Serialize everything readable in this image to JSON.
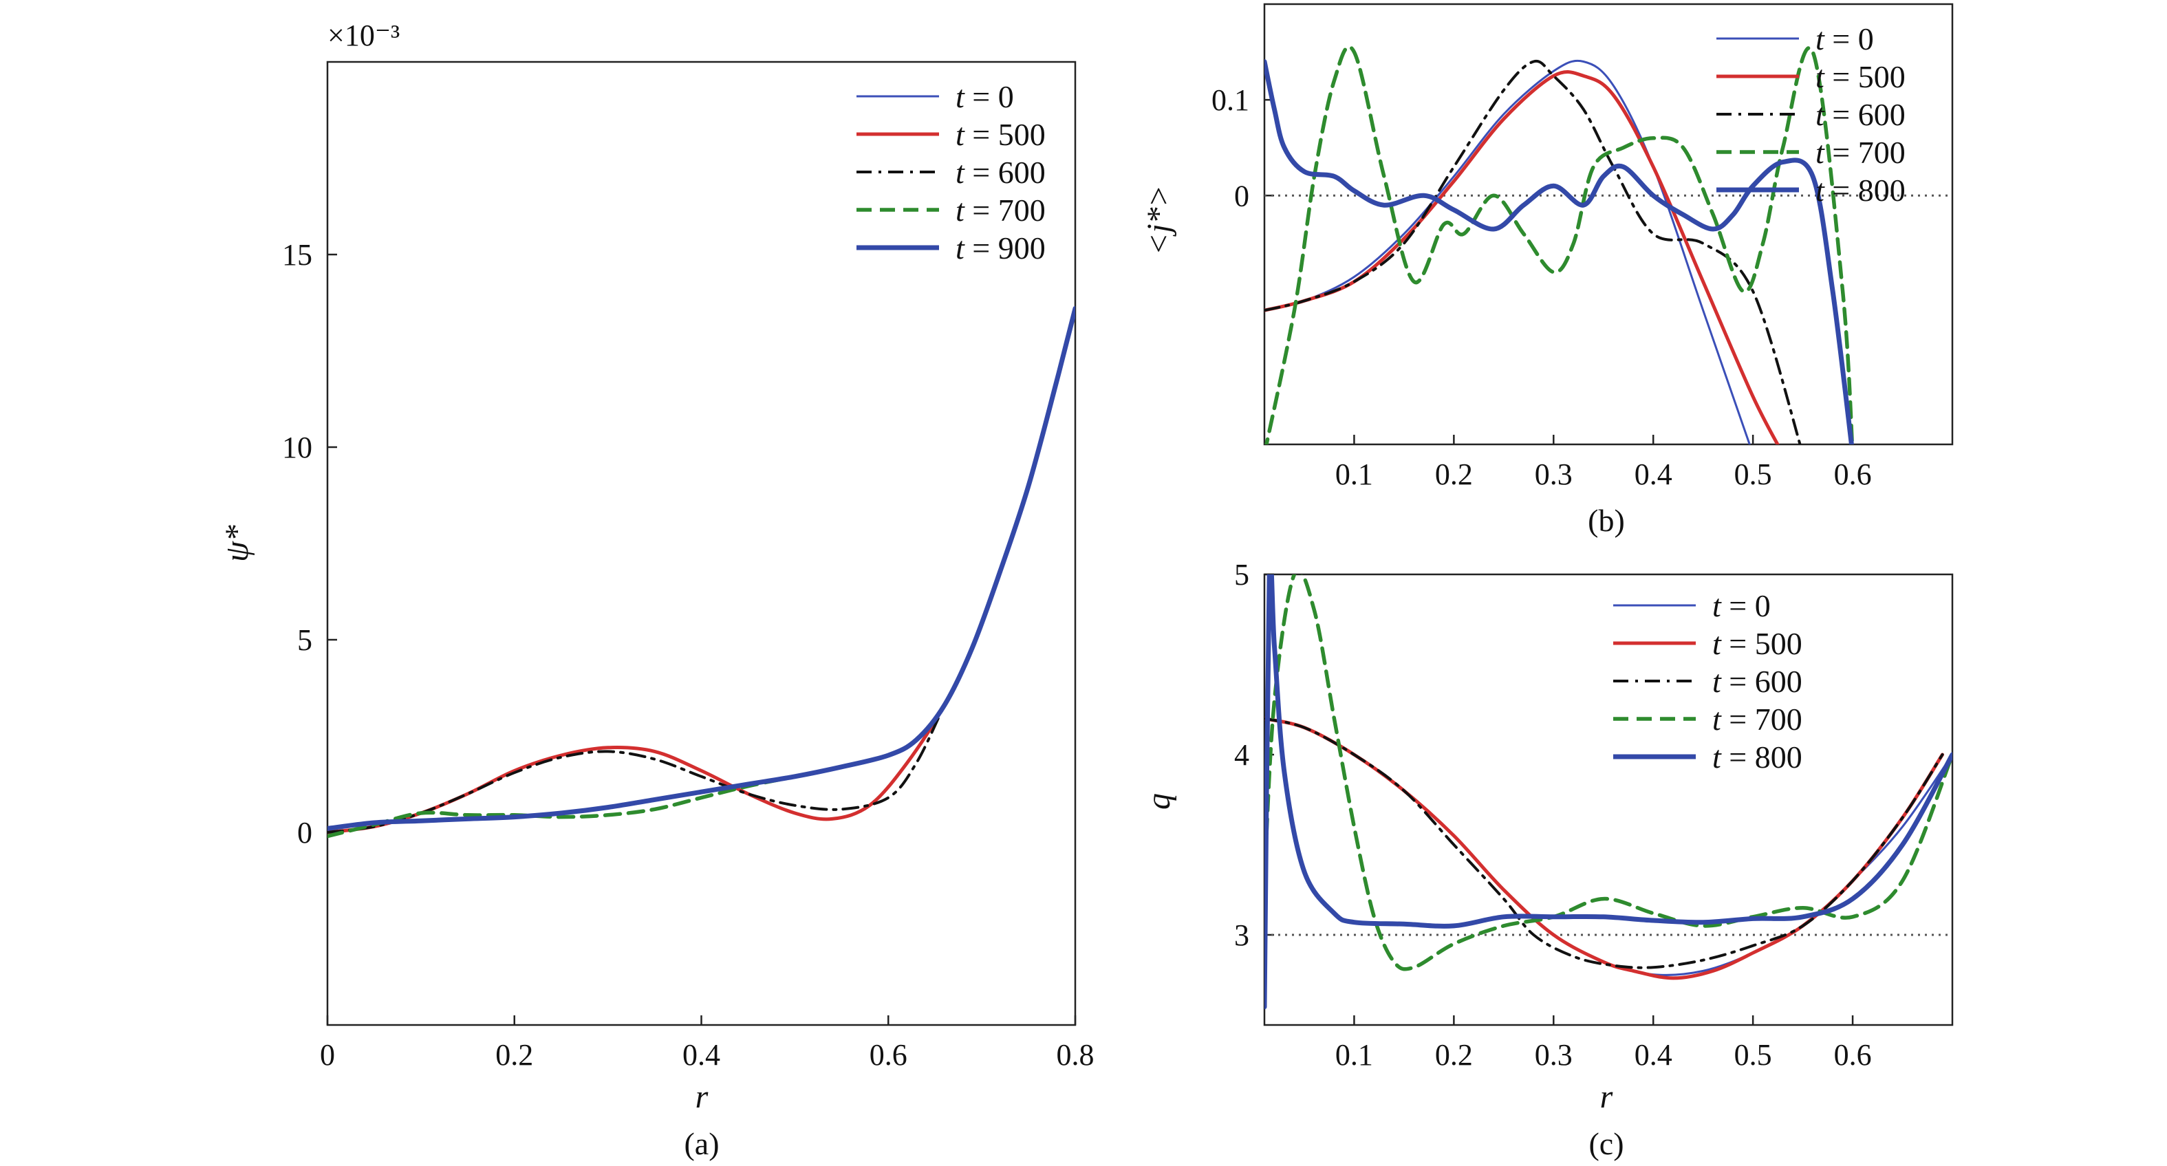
{
  "chart_data": [
    {
      "panel": "a",
      "type": "line",
      "caption": "(a)",
      "xlabel": "r",
      "ylabel": "ψ*",
      "y_multiplier": "×10⁻³",
      "xlim": [
        0,
        0.8
      ],
      "ylim": [
        -5,
        20
      ],
      "xticks": [
        0,
        0.2,
        0.4,
        0.6,
        0.8
      ],
      "xtick_labels": [
        "0",
        "0.2",
        "0.4",
        "0.6",
        "0.8"
      ],
      "yticks": [
        0,
        5,
        10,
        15
      ],
      "ytick_labels": [
        "0",
        "5",
        "10",
        "15"
      ],
      "legend_position": "top-right",
      "series": [
        {
          "name": "t = 0",
          "color": "#3b4fb8",
          "style": "solid-thin",
          "x": [
            0,
            0.05,
            0.1,
            0.15,
            0.2,
            0.25,
            0.3,
            0.35,
            0.4,
            0.45,
            0.5,
            0.55,
            0.6,
            0.63,
            0.66,
            0.69,
            0.72,
            0.75,
            0.78,
            0.8
          ],
          "y": [
            0.1,
            0.25,
            0.3,
            0.35,
            0.4,
            0.5,
            0.65,
            0.85,
            1.05,
            1.25,
            1.45,
            1.7,
            2.0,
            2.4,
            3.3,
            4.8,
            6.8,
            9.0,
            11.7,
            13.6
          ]
        },
        {
          "name": "t = 500",
          "color": "#d32f2f",
          "style": "solid",
          "x": [
            0,
            0.05,
            0.1,
            0.15,
            0.2,
            0.25,
            0.3,
            0.35,
            0.4,
            0.45,
            0.5,
            0.54,
            0.58,
            0.62,
            0.66,
            0.69,
            0.72,
            0.75,
            0.78,
            0.8
          ],
          "y": [
            0.0,
            0.15,
            0.5,
            1.0,
            1.6,
            2.0,
            2.2,
            2.1,
            1.6,
            1.0,
            0.5,
            0.35,
            0.7,
            1.8,
            3.3,
            4.8,
            6.8,
            9.0,
            11.7,
            13.6
          ]
        },
        {
          "name": "t = 600",
          "color": "#111111",
          "style": "dashdot",
          "x": [
            0,
            0.05,
            0.1,
            0.15,
            0.2,
            0.25,
            0.3,
            0.35,
            0.4,
            0.45,
            0.5,
            0.55,
            0.6,
            0.63,
            0.66,
            0.69,
            0.72,
            0.75,
            0.78,
            0.8
          ],
          "y": [
            0.0,
            0.15,
            0.5,
            1.0,
            1.55,
            1.95,
            2.1,
            1.9,
            1.45,
            1.0,
            0.7,
            0.6,
            0.9,
            1.8,
            3.3,
            4.8,
            6.8,
            9.0,
            11.7,
            13.6
          ]
        },
        {
          "name": "t = 700",
          "color": "#2e8b2e",
          "style": "dashed",
          "x": [
            0,
            0.05,
            0.1,
            0.15,
            0.2,
            0.25,
            0.3,
            0.35,
            0.4,
            0.45,
            0.5,
            0.55,
            0.6,
            0.63,
            0.66,
            0.69,
            0.72,
            0.75,
            0.78,
            0.8
          ],
          "y": [
            -0.1,
            0.2,
            0.5,
            0.45,
            0.45,
            0.4,
            0.45,
            0.6,
            0.9,
            1.2,
            1.45,
            1.7,
            2.0,
            2.4,
            3.3,
            4.8,
            6.8,
            9.0,
            11.7,
            13.6
          ]
        },
        {
          "name": "t = 900",
          "color": "#3349a8",
          "style": "solid-thick",
          "x": [
            0,
            0.05,
            0.1,
            0.15,
            0.2,
            0.25,
            0.3,
            0.35,
            0.4,
            0.45,
            0.5,
            0.55,
            0.6,
            0.63,
            0.66,
            0.69,
            0.72,
            0.75,
            0.78,
            0.8
          ],
          "y": [
            0.1,
            0.25,
            0.3,
            0.35,
            0.4,
            0.5,
            0.65,
            0.85,
            1.05,
            1.25,
            1.45,
            1.7,
            2.0,
            2.4,
            3.3,
            4.8,
            6.8,
            9.0,
            11.7,
            13.6
          ]
        }
      ]
    },
    {
      "panel": "b",
      "type": "line",
      "caption": "(b)",
      "xlabel": "",
      "ylabel": "<j*>",
      "xlim": [
        0.01,
        0.7
      ],
      "ylim": [
        -0.26,
        0.2
      ],
      "xticks": [
        0.1,
        0.2,
        0.3,
        0.4,
        0.5,
        0.6
      ],
      "xtick_labels": [
        "0.1",
        "0.2",
        "0.3",
        "0.4",
        "0.5",
        "0.6"
      ],
      "yticks": [
        0,
        0.1
      ],
      "ytick_labels": [
        "0",
        "0.1"
      ],
      "reference_line_y": 0,
      "legend_position": "top-right",
      "series": [
        {
          "name": "t = 0",
          "color": "#3b4fb8",
          "style": "solid-thin",
          "x": [
            0.01,
            0.05,
            0.1,
            0.15,
            0.2,
            0.25,
            0.3,
            0.33,
            0.36,
            0.4,
            0.45,
            0.5
          ],
          "y": [
            -0.12,
            -0.11,
            -0.085,
            -0.04,
            0.02,
            0.085,
            0.13,
            0.14,
            0.115,
            0.03,
            -0.12,
            -0.27
          ]
        },
        {
          "name": "t = 500",
          "color": "#d32f2f",
          "style": "solid",
          "x": [
            0.01,
            0.05,
            0.1,
            0.15,
            0.2,
            0.25,
            0.3,
            0.33,
            0.36,
            0.4,
            0.45,
            0.5,
            0.53
          ],
          "y": [
            -0.12,
            -0.11,
            -0.09,
            -0.045,
            0.015,
            0.08,
            0.125,
            0.125,
            0.105,
            0.03,
            -0.09,
            -0.21,
            -0.27
          ]
        },
        {
          "name": "t = 600",
          "color": "#111111",
          "style": "dashdot",
          "x": [
            0.01,
            0.05,
            0.1,
            0.15,
            0.2,
            0.25,
            0.28,
            0.3,
            0.33,
            0.36,
            0.4,
            0.45,
            0.5,
            0.55
          ],
          "y": [
            -0.12,
            -0.11,
            -0.09,
            -0.05,
            0.03,
            0.11,
            0.14,
            0.125,
            0.09,
            0.03,
            -0.04,
            -0.05,
            -0.1,
            -0.27
          ]
        },
        {
          "name": "t = 700",
          "color": "#2e8b2e",
          "style": "dashed",
          "x": [
            0.01,
            0.04,
            0.06,
            0.08,
            0.1,
            0.13,
            0.16,
            0.19,
            0.21,
            0.24,
            0.27,
            0.3,
            0.32,
            0.34,
            0.37,
            0.4,
            0.43,
            0.46,
            0.49,
            0.51,
            0.53,
            0.56,
            0.59,
            0.6
          ],
          "y": [
            -0.27,
            -0.12,
            0.02,
            0.12,
            0.15,
            0.02,
            -0.09,
            -0.03,
            -0.04,
            0.0,
            -0.04,
            -0.08,
            -0.05,
            0.03,
            0.05,
            0.06,
            0.05,
            -0.02,
            -0.1,
            -0.05,
            0.05,
            0.15,
            -0.1,
            -0.27
          ]
        },
        {
          "name": "t = 800",
          "color": "#3349a8",
          "style": "solid-thick",
          "x": [
            0.01,
            0.02,
            0.03,
            0.05,
            0.08,
            0.1,
            0.13,
            0.17,
            0.2,
            0.24,
            0.27,
            0.3,
            0.33,
            0.35,
            0.37,
            0.4,
            0.43,
            0.46,
            0.48,
            0.5,
            0.53,
            0.56,
            0.58,
            0.6
          ],
          "y": [
            0.14,
            0.09,
            0.05,
            0.025,
            0.02,
            0.005,
            -0.01,
            0.0,
            -0.015,
            -0.035,
            -0.01,
            0.01,
            -0.01,
            0.02,
            0.03,
            0.0,
            -0.02,
            -0.035,
            -0.02,
            0.01,
            0.035,
            0.02,
            -0.1,
            -0.27
          ]
        }
      ]
    },
    {
      "panel": "c",
      "type": "line",
      "caption": "(c)",
      "xlabel": "r",
      "ylabel": "q",
      "xlim": [
        0.01,
        0.7
      ],
      "ylim": [
        2.5,
        5.0
      ],
      "xticks": [
        0.1,
        0.2,
        0.3,
        0.4,
        0.5,
        0.6
      ],
      "xtick_labels": [
        "0.1",
        "0.2",
        "0.3",
        "0.4",
        "0.5",
        "0.6"
      ],
      "yticks": [
        3,
        4,
        5
      ],
      "ytick_labels": [
        "3",
        "4",
        "5"
      ],
      "reference_line_y": 3,
      "legend_position": "top-right",
      "series": [
        {
          "name": "t = 0",
          "color": "#3b4fb8",
          "style": "solid-thin",
          "x": [
            0.01,
            0.05,
            0.1,
            0.15,
            0.2,
            0.25,
            0.3,
            0.35,
            0.4,
            0.45,
            0.5,
            0.55,
            0.6,
            0.65,
            0.7
          ],
          "y": [
            4.2,
            4.15,
            4.0,
            3.8,
            3.55,
            3.25,
            3.0,
            2.85,
            2.78,
            2.8,
            2.9,
            3.05,
            3.3,
            3.6,
            4.0
          ]
        },
        {
          "name": "t = 500",
          "color": "#d32f2f",
          "style": "solid",
          "x": [
            0.01,
            0.05,
            0.1,
            0.15,
            0.2,
            0.25,
            0.3,
            0.35,
            0.38,
            0.42,
            0.46,
            0.5,
            0.55,
            0.6,
            0.65,
            0.69
          ],
          "y": [
            4.2,
            4.15,
            4.0,
            3.8,
            3.55,
            3.25,
            3.0,
            2.85,
            2.8,
            2.76,
            2.8,
            2.9,
            3.05,
            3.3,
            3.65,
            4.0
          ]
        },
        {
          "name": "t = 600",
          "color": "#111111",
          "style": "dashdot",
          "x": [
            0.01,
            0.05,
            0.1,
            0.15,
            0.2,
            0.25,
            0.28,
            0.32,
            0.36,
            0.4,
            0.45,
            0.5,
            0.55,
            0.6,
            0.65,
            0.69
          ],
          "y": [
            4.2,
            4.15,
            4.0,
            3.8,
            3.5,
            3.2,
            3.0,
            2.88,
            2.83,
            2.82,
            2.86,
            2.94,
            3.05,
            3.3,
            3.65,
            4.0
          ]
        },
        {
          "name": "t = 700",
          "color": "#2e8b2e",
          "style": "dashed",
          "x": [
            0.01,
            0.02,
            0.04,
            0.06,
            0.08,
            0.1,
            0.12,
            0.14,
            0.16,
            0.2,
            0.25,
            0.3,
            0.35,
            0.4,
            0.45,
            0.5,
            0.55,
            0.6,
            0.65,
            0.7
          ],
          "y": [
            3.3,
            4.3,
            5.0,
            4.8,
            4.2,
            3.6,
            3.1,
            2.85,
            2.82,
            2.95,
            3.05,
            3.1,
            3.2,
            3.12,
            3.05,
            3.1,
            3.15,
            3.1,
            3.3,
            4.0
          ]
        },
        {
          "name": "t = 800",
          "color": "#3349a8",
          "style": "solid-thick",
          "x": [
            0.01,
            0.015,
            0.02,
            0.03,
            0.05,
            0.08,
            0.1,
            0.15,
            0.2,
            0.25,
            0.3,
            0.35,
            0.4,
            0.45,
            0.5,
            0.55,
            0.6,
            0.65,
            0.7
          ],
          "y": [
            2.6,
            5.0,
            4.6,
            3.9,
            3.35,
            3.12,
            3.07,
            3.06,
            3.05,
            3.1,
            3.1,
            3.1,
            3.08,
            3.07,
            3.09,
            3.1,
            3.2,
            3.5,
            4.0
          ]
        }
      ]
    }
  ]
}
